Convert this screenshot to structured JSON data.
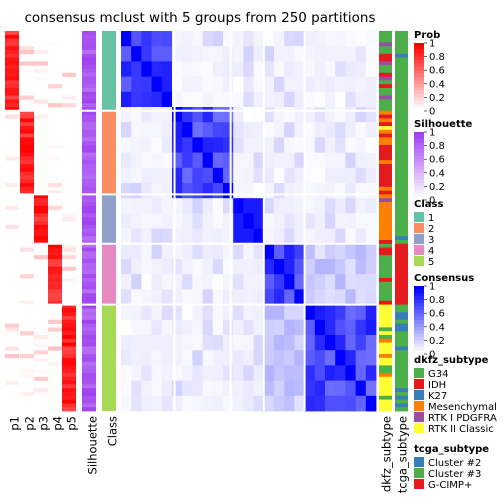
{
  "chart_data": {
    "type": "heatmap",
    "title": "consensus mclust with 5 groups from 250 partitions",
    "n_samples": 100,
    "class_sizes": [
      21,
      22,
      13,
      16,
      28
    ],
    "bottom_labels": [
      "p1",
      "p2",
      "p3",
      "p4",
      "p5",
      "Silhouette",
      "Class"
    ],
    "right_annotation_labels": [
      "dkfz_subtype",
      "tcga_subtype"
    ],
    "colors": {
      "prob": "#ff0000",
      "silhouette": "#a040f0",
      "consensus": "#0000ff",
      "class": [
        "#66c2a5",
        "#fc8d62",
        "#8da0cb",
        "#e78ac3",
        "#a6d854"
      ],
      "dkfz": [
        "#4daf4a",
        "#e41a1c",
        "#377eb8",
        "#ff7f00",
        "#984ea3",
        "#ffff33"
      ],
      "tcga": [
        "#377eb8",
        "#4daf4a",
        "#e41a1c"
      ]
    },
    "legends": [
      {
        "title": "Prob",
        "type": "gradient",
        "color": "#ff0000",
        "ticks": [
          "1",
          "0.8",
          "0.6",
          "0.4",
          "0.2",
          "0"
        ]
      },
      {
        "title": "Silhouette",
        "type": "gradient",
        "color": "#a040f0",
        "ticks": [
          "1",
          "0.8",
          "0.6",
          "0.4",
          "0.2",
          "0"
        ]
      },
      {
        "title": "Class",
        "type": "discrete",
        "items": [
          {
            "label": "1",
            "color": "#66c2a5"
          },
          {
            "label": "2",
            "color": "#fc8d62"
          },
          {
            "label": "3",
            "color": "#8da0cb"
          },
          {
            "label": "4",
            "color": "#e78ac3"
          },
          {
            "label": "5",
            "color": "#a6d854"
          }
        ]
      },
      {
        "title": "Consensus",
        "type": "gradient",
        "color": "#0000ff",
        "ticks": [
          "1",
          "0.8",
          "0.6",
          "0.4",
          "0.2",
          "0"
        ]
      },
      {
        "title": "dkfz_subtype",
        "type": "discrete",
        "items": [
          {
            "label": "G34",
            "color": "#4daf4a"
          },
          {
            "label": "IDH",
            "color": "#e41a1c"
          },
          {
            "label": "K27",
            "color": "#377eb8"
          },
          {
            "label": "Mesenchymal",
            "color": "#ff7f00"
          },
          {
            "label": "RTK I PDGFRA",
            "color": "#984ea3"
          },
          {
            "label": "RTK II Classic",
            "color": "#ffff33"
          }
        ]
      },
      {
        "title": "tcga_subtype",
        "type": "discrete",
        "items": [
          {
            "label": "Cluster #2",
            "color": "#377eb8"
          },
          {
            "label": "Cluster #3",
            "color": "#4daf4a"
          },
          {
            "label": "G-CIMP+",
            "color": "#e41a1c"
          }
        ]
      }
    ]
  }
}
